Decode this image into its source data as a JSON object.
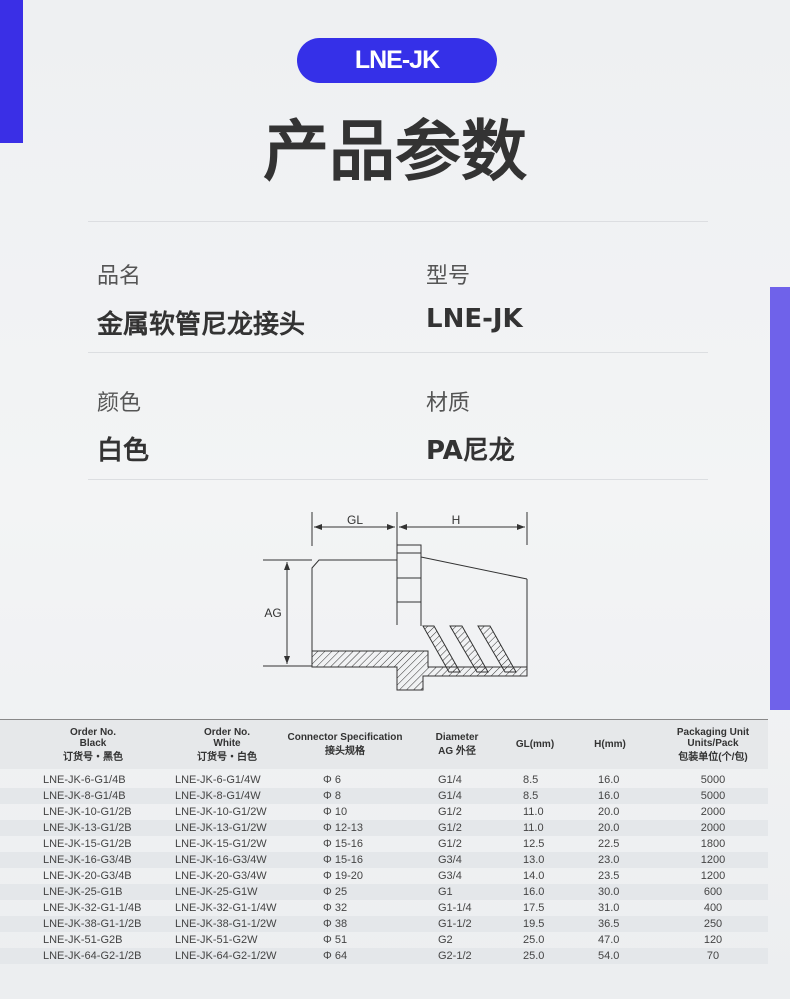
{
  "badge": "LNE-JK",
  "title": "产品参数",
  "specs": [
    {
      "label": "品名",
      "value": "金属软管尼龙接头"
    },
    {
      "label": "型号",
      "value": "LNE-JK"
    },
    {
      "label": "颜色",
      "value": "白色"
    },
    {
      "label": "材质",
      "value": "PA尼龙"
    }
  ],
  "diagram": {
    "gl": "GL",
    "h": "H",
    "ag": "AG"
  },
  "colors": {
    "accent": "#3530e8",
    "side_bar": "#6f62ea"
  },
  "table": {
    "headers": [
      [
        "Order No.",
        "Black",
        "订货号・黑色"
      ],
      [
        "Order No.",
        "White",
        "订货号・白色"
      ],
      [
        "Connector Specification",
        "接头规格"
      ],
      [
        "Diameter",
        "AG 外径"
      ],
      [
        "GL(mm)"
      ],
      [
        "H(mm)"
      ],
      [
        "Packaging Unit",
        "Units/Pack",
        "包装单位(个/包)"
      ]
    ],
    "rows": [
      [
        "LNE-JK-6-G1/4B",
        "LNE-JK-6-G1/4W",
        "Φ 6",
        "G1/4",
        "8.5",
        "16.0",
        "5000"
      ],
      [
        "LNE-JK-8-G1/4B",
        "LNE-JK-8-G1/4W",
        "Φ 8",
        "G1/4",
        "8.5",
        "16.0",
        "5000"
      ],
      [
        "LNE-JK-10-G1/2B",
        "LNE-JK-10-G1/2W",
        "Φ 10",
        "G1/2",
        "11.0",
        "20.0",
        "2000"
      ],
      [
        "LNE-JK-13-G1/2B",
        "LNE-JK-13-G1/2W",
        "Φ 12-13",
        "G1/2",
        "11.0",
        "20.0",
        "2000"
      ],
      [
        "LNE-JK-15-G1/2B",
        "LNE-JK-15-G1/2W",
        "Φ 15-16",
        "G1/2",
        "12.5",
        "22.5",
        "1800"
      ],
      [
        "LNE-JK-16-G3/4B",
        "LNE-JK-16-G3/4W",
        "Φ 15-16",
        "G3/4",
        "13.0",
        "23.0",
        "1200"
      ],
      [
        "LNE-JK-20-G3/4B",
        "LNE-JK-20-G3/4W",
        "Φ 19-20",
        "G3/4",
        "14.0",
        "23.5",
        "1200"
      ],
      [
        "LNE-JK-25-G1B",
        "LNE-JK-25-G1W",
        "Φ 25",
        "G1",
        "16.0",
        "30.0",
        "600"
      ],
      [
        "LNE-JK-32-G1-1/4B",
        "LNE-JK-32-G1-1/4W",
        "Φ 32",
        "G1-1/4",
        "17.5",
        "31.0",
        "400"
      ],
      [
        "LNE-JK-38-G1-1/2B",
        "LNE-JK-38-G1-1/2W",
        "Φ 38",
        "G1-1/2",
        "19.5",
        "36.5",
        "250"
      ],
      [
        "LNE-JK-51-G2B",
        "LNE-JK-51-G2W",
        "Φ 51",
        "G2",
        "25.0",
        "47.0",
        "120"
      ],
      [
        "LNE-JK-64-G2-1/2B",
        "LNE-JK-64-G2-1/2W",
        "Φ 64",
        "G2-1/2",
        "25.0",
        "54.0",
        "70"
      ]
    ]
  }
}
